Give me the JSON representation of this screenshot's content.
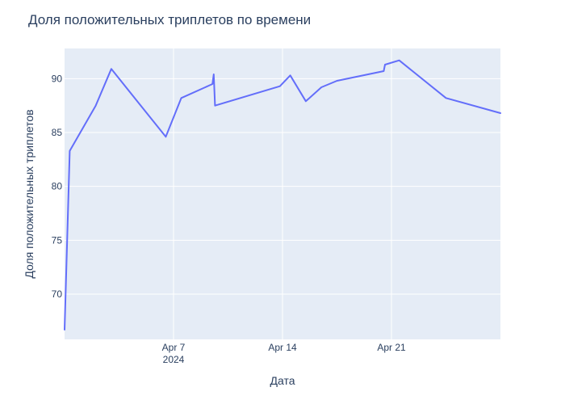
{
  "chart_data": {
    "type": "line",
    "title": "Доля положительных триплетов по времени",
    "xlabel": "Дата",
    "ylabel": "Доля положительных триплетов",
    "x_is_date": true,
    "xlim": [
      "2024-03-31",
      "2024-04-28"
    ],
    "ylim": [
      65.8,
      92.8
    ],
    "x_ticks": [
      {
        "value": "2024-04-07",
        "label": "Apr 7",
        "sublabel": "2024"
      },
      {
        "value": "2024-04-14",
        "label": "Apr 14",
        "sublabel": ""
      },
      {
        "value": "2024-04-21",
        "label": "Apr 21",
        "sublabel": ""
      }
    ],
    "y_ticks": [
      70,
      75,
      80,
      85,
      90
    ],
    "grid": true,
    "legend": "none",
    "colors": {
      "series": "#636efa",
      "plot_background": "#e5ecf6",
      "gridline": "#ffffff",
      "text": "#2a3f5f"
    },
    "series": [
      {
        "x": [
          "2024-03-31",
          "2024-03-31T08:00",
          "2024-04-02",
          "2024-04-03",
          "2024-04-06T12:00",
          "2024-04-07T12:00",
          "2024-04-09T12:00",
          "2024-04-09T14:00",
          "2024-04-09T16:00",
          "2024-04-13T20:00",
          "2024-04-14T12:00",
          "2024-04-15T12:00",
          "2024-04-16T12:00",
          "2024-04-17T12:00",
          "2024-04-20T12:00",
          "2024-04-20T14:00",
          "2024-04-21T12:00",
          "2024-04-24T12:00",
          "2024-04-28"
        ],
        "y": [
          66.7,
          83.3,
          87.5,
          90.9,
          84.6,
          88.2,
          89.5,
          90.4,
          87.5,
          89.3,
          90.3,
          87.9,
          89.2,
          89.8,
          90.7,
          91.3,
          91.7,
          88.2,
          86.8
        ]
      }
    ]
  }
}
